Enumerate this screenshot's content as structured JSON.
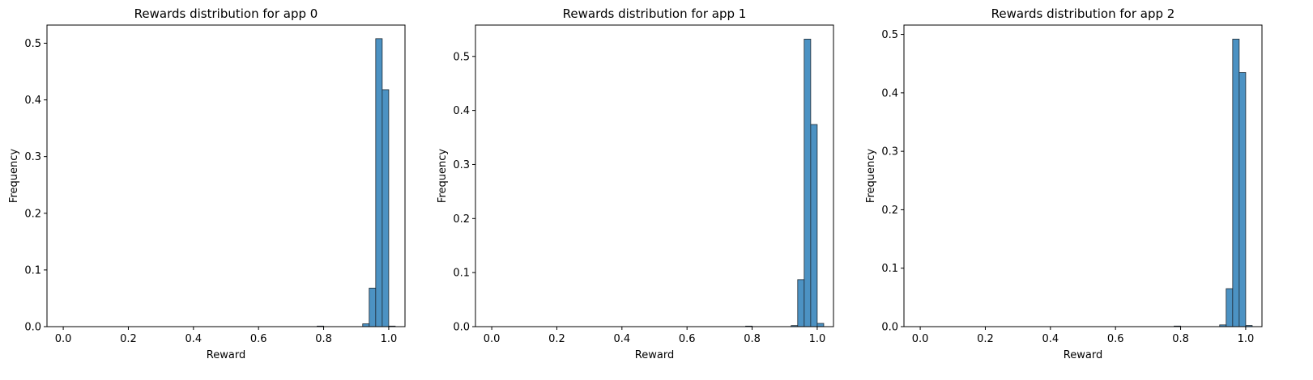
{
  "chart_data": [
    {
      "type": "bar",
      "title": "Rewards distribution for app 0",
      "xlabel": "Reward",
      "ylabel": "Frequency",
      "xlim": [
        -0.05,
        1.05
      ],
      "ylim": [
        0,
        0.532
      ],
      "xticks": [
        "0.0",
        "0.2",
        "0.4",
        "0.6",
        "0.8",
        "1.0"
      ],
      "yticks": [
        "0.0",
        "0.1",
        "0.2",
        "0.3",
        "0.4",
        "0.5"
      ],
      "bin_width": 0.02,
      "bar_color": "#4C92C3",
      "bins": [
        {
          "x": 0.79,
          "value": 0.001
        },
        {
          "x": 0.93,
          "value": 0.005
        },
        {
          "x": 0.95,
          "value": 0.068
        },
        {
          "x": 0.97,
          "value": 0.508
        },
        {
          "x": 0.99,
          "value": 0.418
        },
        {
          "x": 1.01,
          "value": 0.001
        }
      ]
    },
    {
      "type": "bar",
      "title": "Rewards distribution for app 1",
      "xlabel": "Reward",
      "ylabel": "Frequency",
      "xlim": [
        -0.05,
        1.05
      ],
      "ylim": [
        0,
        0.558
      ],
      "xticks": [
        "0.0",
        "0.2",
        "0.4",
        "0.6",
        "0.8",
        "1.0"
      ],
      "yticks": [
        "0.0",
        "0.1",
        "0.2",
        "0.3",
        "0.4",
        "0.5"
      ],
      "bin_width": 0.02,
      "bar_color": "#4C92C3",
      "bins": [
        {
          "x": 0.79,
          "value": 0.001
        },
        {
          "x": 0.93,
          "value": 0.002
        },
        {
          "x": 0.95,
          "value": 0.087
        },
        {
          "x": 0.97,
          "value": 0.532
        },
        {
          "x": 0.99,
          "value": 0.374
        },
        {
          "x": 1.01,
          "value": 0.006
        }
      ]
    },
    {
      "type": "bar",
      "title": "Rewards distribution for app 2",
      "xlabel": "Reward",
      "ylabel": "Frequency",
      "xlim": [
        -0.05,
        1.05
      ],
      "ylim": [
        0,
        0.516
      ],
      "xticks": [
        "0.0",
        "0.2",
        "0.4",
        "0.6",
        "0.8",
        "1.0"
      ],
      "yticks": [
        "0.0",
        "0.1",
        "0.2",
        "0.3",
        "0.4",
        "0.5"
      ],
      "bin_width": 0.02,
      "bar_color": "#4C92C3",
      "bins": [
        {
          "x": 0.79,
          "value": 0.001
        },
        {
          "x": 0.93,
          "value": 0.003
        },
        {
          "x": 0.95,
          "value": 0.065
        },
        {
          "x": 0.97,
          "value": 0.492
        },
        {
          "x": 0.99,
          "value": 0.435
        },
        {
          "x": 1.01,
          "value": 0.002
        }
      ]
    }
  ]
}
